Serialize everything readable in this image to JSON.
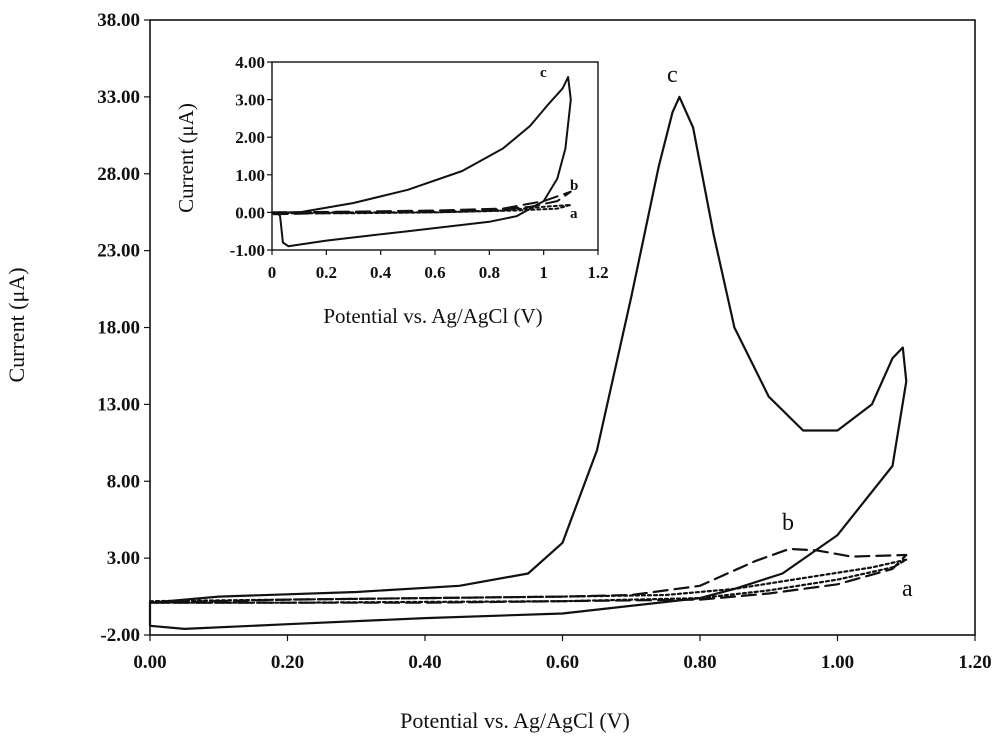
{
  "chart_data": [
    {
      "type": "line",
      "xlabel": "Potential vs. Ag/AgCl (V)",
      "ylabel": "Current (μA)",
      "xlim": [
        0,
        1.2
      ],
      "ylim": [
        -2,
        38
      ],
      "x_ticks": [
        "0.00",
        "0.20",
        "0.40",
        "0.60",
        "0.80",
        "1.00",
        "1.20"
      ],
      "y_ticks": [
        "-2.00",
        "3.00",
        "8.00",
        "13.00",
        "18.00",
        "23.00",
        "28.00",
        "33.00",
        "38.00"
      ],
      "grid": false,
      "series": [
        {
          "name": "a",
          "style": "dotted",
          "points": [
            [
              0.0,
              0.2
            ],
            [
              0.2,
              0.3
            ],
            [
              0.4,
              0.4
            ],
            [
              0.6,
              0.5
            ],
            [
              0.75,
              0.6
            ],
            [
              0.85,
              1.0
            ],
            [
              0.95,
              1.7
            ],
            [
              1.05,
              2.4
            ],
            [
              1.1,
              2.9
            ],
            [
              1.08,
              2.4
            ],
            [
              1.0,
              1.6
            ],
            [
              0.9,
              0.9
            ],
            [
              0.8,
              0.4
            ],
            [
              0.6,
              0.2
            ],
            [
              0.4,
              0.15
            ],
            [
              0.2,
              0.1
            ],
            [
              0.0,
              0.1
            ]
          ]
        },
        {
          "name": "b",
          "style": "dashed",
          "points": [
            [
              0.0,
              0.1
            ],
            [
              0.2,
              0.3
            ],
            [
              0.4,
              0.4
            ],
            [
              0.6,
              0.5
            ],
            [
              0.7,
              0.6
            ],
            [
              0.8,
              1.2
            ],
            [
              0.88,
              2.8
            ],
            [
              0.93,
              3.6
            ],
            [
              0.97,
              3.5
            ],
            [
              1.02,
              3.1
            ],
            [
              1.1,
              3.2
            ],
            [
              1.08,
              2.3
            ],
            [
              1.0,
              1.3
            ],
            [
              0.9,
              0.7
            ],
            [
              0.8,
              0.3
            ],
            [
              0.6,
              0.2
            ],
            [
              0.4,
              0.1
            ],
            [
              0.2,
              0.1
            ],
            [
              0.0,
              0.1
            ]
          ]
        },
        {
          "name": "c",
          "style": "solid",
          "points": [
            [
              0.0,
              0.1
            ],
            [
              0.1,
              0.5
            ],
            [
              0.3,
              0.8
            ],
            [
              0.45,
              1.2
            ],
            [
              0.55,
              2.0
            ],
            [
              0.6,
              4.0
            ],
            [
              0.65,
              10.0
            ],
            [
              0.7,
              20.0
            ],
            [
              0.74,
              28.5
            ],
            [
              0.76,
              32.0
            ],
            [
              0.77,
              33.0
            ],
            [
              0.79,
              31.0
            ],
            [
              0.82,
              24.0
            ],
            [
              0.85,
              18.0
            ],
            [
              0.9,
              13.5
            ],
            [
              0.95,
              11.3
            ],
            [
              1.0,
              11.3
            ],
            [
              1.05,
              13.0
            ],
            [
              1.08,
              16.0
            ],
            [
              1.095,
              16.7
            ],
            [
              1.1,
              14.5
            ],
            [
              1.08,
              9.0
            ],
            [
              1.0,
              4.5
            ],
            [
              0.92,
              2.0
            ],
            [
              0.85,
              1.0
            ],
            [
              0.8,
              0.4
            ],
            [
              0.6,
              -0.6
            ],
            [
              0.4,
              -0.9
            ],
            [
              0.2,
              -1.3
            ],
            [
              0.05,
              -1.6
            ],
            [
              0.0,
              -1.4
            ],
            [
              0.0,
              0.1
            ]
          ]
        }
      ],
      "curve_labels": [
        "c",
        "b",
        "a"
      ]
    },
    {
      "type": "line",
      "xlabel": "Potential vs. Ag/AgCl (V)",
      "ylabel": "Current (μA)",
      "xlim": [
        0,
        1.2
      ],
      "ylim": [
        -1,
        4
      ],
      "x_ticks": [
        "0",
        "0.2",
        "0.4",
        "0.6",
        "0.8",
        "1",
        "1.2"
      ],
      "y_ticks": [
        "-1.00",
        "0.00",
        "1.00",
        "2.00",
        "3.00",
        "4.00"
      ],
      "grid": false,
      "series": [
        {
          "name": "a",
          "style": "dotted",
          "points": [
            [
              0.0,
              0.0
            ],
            [
              0.3,
              0.0
            ],
            [
              0.6,
              0.0
            ],
            [
              0.85,
              0.05
            ],
            [
              1.0,
              0.15
            ],
            [
              1.1,
              0.2
            ],
            [
              1.05,
              0.1
            ],
            [
              0.9,
              0.05
            ],
            [
              0.6,
              0.0
            ],
            [
              0.3,
              -0.02
            ],
            [
              0.0,
              -0.02
            ]
          ]
        },
        {
          "name": "b",
          "style": "dashed",
          "points": [
            [
              0.0,
              0.0
            ],
            [
              0.3,
              0.02
            ],
            [
              0.6,
              0.05
            ],
            [
              0.85,
              0.1
            ],
            [
              1.0,
              0.3
            ],
            [
              1.08,
              0.5
            ],
            [
              1.1,
              0.55
            ],
            [
              1.05,
              0.3
            ],
            [
              0.95,
              0.15
            ],
            [
              0.8,
              0.05
            ],
            [
              0.5,
              0.0
            ],
            [
              0.2,
              -0.02
            ],
            [
              0.0,
              -0.05
            ]
          ]
        },
        {
          "name": "c",
          "style": "solid",
          "points": [
            [
              0.02,
              0.0
            ],
            [
              0.1,
              0.0
            ],
            [
              0.3,
              0.25
            ],
            [
              0.5,
              0.6
            ],
            [
              0.7,
              1.1
            ],
            [
              0.85,
              1.7
            ],
            [
              0.95,
              2.3
            ],
            [
              1.02,
              2.9
            ],
            [
              1.07,
              3.3
            ],
            [
              1.09,
              3.6
            ],
            [
              1.1,
              3.0
            ],
            [
              1.08,
              1.7
            ],
            [
              1.05,
              0.9
            ],
            [
              1.0,
              0.3
            ],
            [
              0.9,
              -0.1
            ],
            [
              0.8,
              -0.25
            ],
            [
              0.5,
              -0.5
            ],
            [
              0.2,
              -0.75
            ],
            [
              0.06,
              -0.9
            ],
            [
              0.04,
              -0.8
            ],
            [
              0.03,
              -0.1
            ],
            [
              0.02,
              0.0
            ]
          ]
        }
      ],
      "curve_labels": [
        "c",
        "b",
        "a"
      ]
    }
  ]
}
